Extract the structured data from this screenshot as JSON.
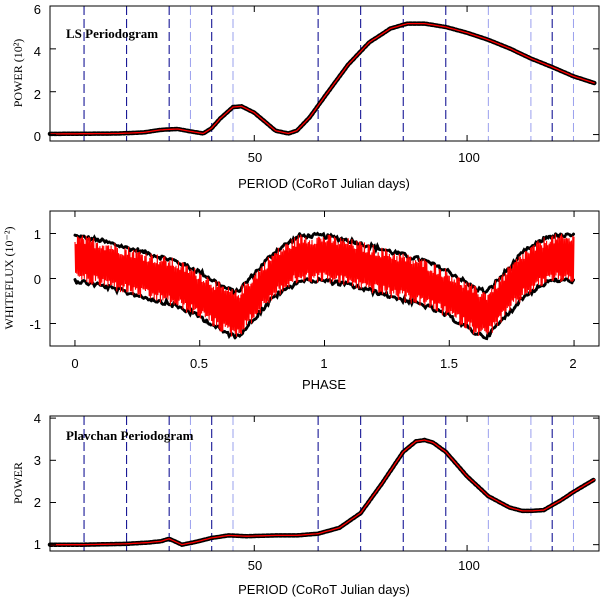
{
  "colors": {
    "model": "#ff0000",
    "points": "#000000",
    "dash_dark": "#00008b",
    "dash_light": "#9aa0ee"
  },
  "chart_data": [
    {
      "type": "line",
      "title": "LS Periodogram",
      "xlabel": "PERIOD (CoRoT Julian days)",
      "ylabel": "POWER (10²)",
      "xlim": [
        2,
        131
      ],
      "ylim": [
        -0.3,
        6.0
      ],
      "xticks": [
        "50",
        "100"
      ],
      "xtick_values": [
        50,
        100
      ],
      "yticks": [
        "0",
        "2",
        "4",
        "6"
      ],
      "ytick_values": [
        0,
        2,
        4,
        6
      ],
      "x": [
        2,
        10,
        18,
        24,
        28,
        32,
        35,
        38,
        40,
        42,
        45,
        47,
        50,
        53,
        55,
        58,
        60,
        63,
        67,
        72,
        77,
        82,
        86,
        90,
        95,
        100,
        105,
        110,
        115,
        120,
        125,
        130
      ],
      "y": [
        0.03,
        0.04,
        0.05,
        0.1,
        0.22,
        0.26,
        0.15,
        0.05,
        0.3,
        0.75,
        1.28,
        1.32,
        1.02,
        0.52,
        0.18,
        0.05,
        0.18,
        0.8,
        1.9,
        3.25,
        4.3,
        4.95,
        5.18,
        5.18,
        5.02,
        4.75,
        4.42,
        4.02,
        3.55,
        3.15,
        2.72,
        2.4
      ],
      "vlines_dark": [
        10,
        20,
        30,
        40,
        65,
        75,
        85,
        95,
        120
      ],
      "vlines_light": [
        35,
        45,
        105,
        115,
        125
      ]
    },
    {
      "type": "scatter",
      "title": "",
      "xlabel": "PHASE",
      "ylabel": "WHITEFLUX (10⁻²)",
      "xlim": [
        -0.1,
        2.1
      ],
      "ylim": [
        -1.5,
        1.5
      ],
      "xticks": [
        "0",
        "0.5",
        "1",
        "1.5",
        "2"
      ],
      "xtick_values": [
        0,
        0.5,
        1,
        1.5,
        2
      ],
      "yticks": [
        "-1",
        "0",
        "1"
      ],
      "ytick_values": [
        -1,
        0,
        1
      ],
      "phase": [
        0.0,
        0.1,
        0.2,
        0.3,
        0.4,
        0.5,
        0.6,
        0.65,
        0.7,
        0.8,
        0.9,
        1.0
      ],
      "flux_center": [
        0.45,
        0.35,
        0.2,
        0.05,
        -0.1,
        -0.35,
        -0.7,
        -0.8,
        -0.5,
        0.1,
        0.45,
        0.45
      ],
      "scatter_halfwidth": 0.55
    },
    {
      "type": "line",
      "title": "Plavchan Periodogram",
      "xlabel": "PERIOD (CoRoT Julian days)",
      "ylabel": "POWER",
      "xlim": [
        2,
        131
      ],
      "ylim": [
        0.85,
        4.05
      ],
      "xticks": [
        "50",
        "100"
      ],
      "xtick_values": [
        50,
        100
      ],
      "yticks": [
        "1",
        "2",
        "3",
        "4"
      ],
      "ytick_values": [
        1,
        2,
        3,
        4
      ],
      "x": [
        2,
        10,
        20,
        25,
        28,
        30,
        33,
        36,
        40,
        44,
        48,
        55,
        60,
        65,
        70,
        75,
        80,
        85,
        88,
        90,
        92,
        95,
        100,
        105,
        110,
        113,
        115,
        118,
        122,
        125,
        130
      ],
      "y": [
        1.0,
        1.0,
        1.02,
        1.05,
        1.08,
        1.14,
        1.0,
        1.06,
        1.16,
        1.22,
        1.2,
        1.22,
        1.22,
        1.26,
        1.4,
        1.75,
        2.45,
        3.2,
        3.45,
        3.48,
        3.42,
        3.2,
        2.62,
        2.15,
        1.88,
        1.8,
        1.8,
        1.82,
        2.05,
        2.25,
        2.55
      ],
      "vlines_dark": [
        10,
        20,
        30,
        40,
        65,
        75,
        85,
        95,
        120
      ],
      "vlines_light": [
        35,
        45,
        105,
        115,
        125
      ]
    }
  ]
}
